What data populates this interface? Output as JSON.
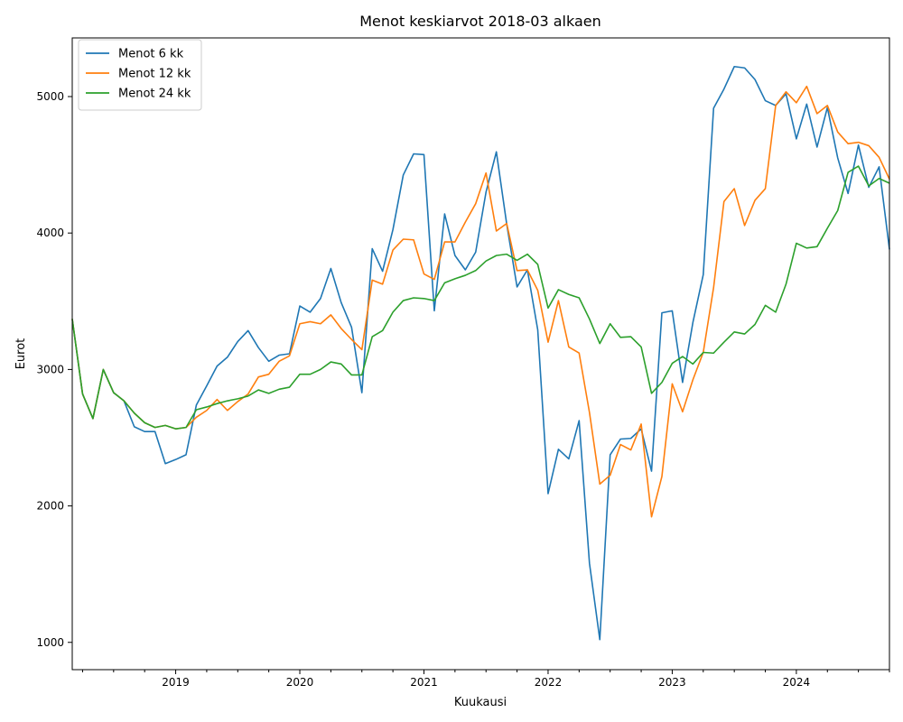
{
  "chart_data": {
    "type": "line",
    "title": "Menot keskiarvot 2018-03 alkaen",
    "xlabel": "Kuukausi",
    "ylabel": "Eurot",
    "start_month": "2018-03",
    "x_ticks": [
      "2019",
      "2020",
      "2021",
      "2022",
      "2023",
      "2024"
    ],
    "y_ticks": [
      1000,
      2000,
      3000,
      4000,
      5000
    ],
    "ylim": [
      800,
      5430
    ],
    "grid": false,
    "legend_position": "top-left",
    "series": [
      {
        "name": "Menot 6 kk",
        "color": "#1f77b4",
        "values": [
          3370,
          2820,
          2640,
          3000,
          2830,
          2770,
          2580,
          2545,
          2545,
          2310,
          2340,
          2375,
          2740,
          2880,
          3025,
          3090,
          3205,
          3285,
          3160,
          3060,
          3105,
          3115,
          3465,
          3420,
          3520,
          3740,
          3490,
          3310,
          2830,
          3885,
          3720,
          4025,
          4425,
          4580,
          4575,
          3430,
          4140,
          3835,
          3730,
          3860,
          4300,
          4595,
          4065,
          3605,
          3730,
          3290,
          2090,
          2415,
          2345,
          2625,
          1580,
          1020,
          2375,
          2490,
          2495,
          2565,
          2255,
          3415,
          3430,
          2905,
          3345,
          3695,
          4915,
          5055,
          5220,
          5210,
          5125,
          4970,
          4935,
          5020,
          4690,
          4945,
          4630,
          4920,
          4550,
          4290,
          4645,
          4335,
          4485,
          3880
        ]
      },
      {
        "name": "Menot 12 kk",
        "color": "#ff7f0e",
        "values": [
          3370,
          2820,
          2640,
          3000,
          2830,
          2770,
          2680,
          2610,
          2575,
          2590,
          2565,
          2575,
          2650,
          2700,
          2780,
          2700,
          2765,
          2820,
          2945,
          2965,
          3060,
          3100,
          3335,
          3350,
          3335,
          3400,
          3300,
          3220,
          3145,
          3655,
          3625,
          3875,
          3955,
          3950,
          3700,
          3660,
          3935,
          3935,
          4080,
          4215,
          4440,
          4015,
          4070,
          3725,
          3730,
          3580,
          3200,
          3505,
          3165,
          3120,
          2685,
          2160,
          2225,
          2450,
          2410,
          2600,
          1920,
          2215,
          2895,
          2690,
          2925,
          3125,
          3600,
          4230,
          4325,
          4055,
          4240,
          4325,
          4935,
          5035,
          4955,
          5075,
          4875,
          4935,
          4740,
          4655,
          4665,
          4640,
          4555,
          4395
        ]
      },
      {
        "name": "Menot 24 kk",
        "color": "#2ca02c",
        "values": [
          3370,
          2820,
          2640,
          3000,
          2830,
          2770,
          2680,
          2610,
          2575,
          2590,
          2565,
          2575,
          2705,
          2725,
          2750,
          2770,
          2785,
          2805,
          2850,
          2825,
          2855,
          2870,
          2965,
          2965,
          3000,
          3055,
          3040,
          2960,
          2960,
          3240,
          3285,
          3420,
          3505,
          3525,
          3520,
          3505,
          3635,
          3665,
          3690,
          3725,
          3795,
          3835,
          3845,
          3800,
          3845,
          3770,
          3450,
          3585,
          3550,
          3525,
          3370,
          3190,
          3335,
          3235,
          3240,
          3165,
          2825,
          2905,
          3045,
          3095,
          3040,
          3125,
          3120,
          3200,
          3275,
          3260,
          3330,
          3470,
          3420,
          3625,
          3925,
          3890,
          3900,
          4035,
          4165,
          4445,
          4490,
          4345,
          4400,
          4365
        ]
      }
    ]
  }
}
